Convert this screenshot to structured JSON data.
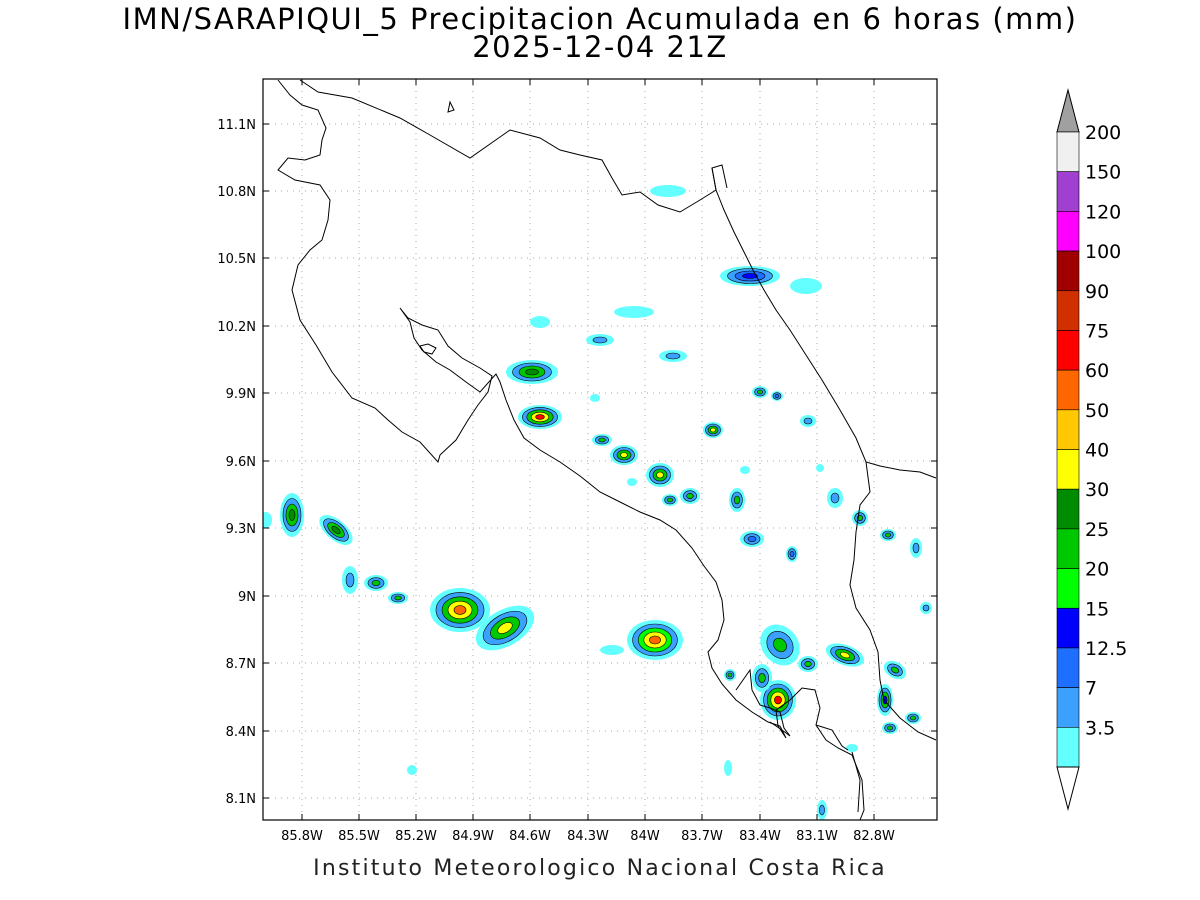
{
  "header": {
    "title": "IMN/SARAPIQUI_5 Precipitacion Acumulada en 6 horas (mm)",
    "subtitle": "2025-12-04 21Z"
  },
  "footer": {
    "text": "Instituto Meteorologico Nacional Costa Rica"
  },
  "map": {
    "lat_labels": [
      "11.1N",
      "10.8N",
      "10.5N",
      "10.2N",
      "9.9N",
      "9.6N",
      "9.3N",
      "9N",
      "8.7N",
      "8.4N",
      "8.1N"
    ],
    "lon_labels": [
      "85.8W",
      "85.5W",
      "85.2W",
      "84.9W",
      "84.6W",
      "84.3W",
      "84W",
      "83.7W",
      "83.4W",
      "83.1W",
      "82.8W"
    ],
    "grid": "dotted"
  },
  "colorbar": {
    "levels": [
      "200",
      "150",
      "120",
      "100",
      "90",
      "75",
      "60",
      "50",
      "40",
      "30",
      "25",
      "20",
      "15",
      "12.5",
      "7",
      "3.5"
    ],
    "colors": [
      "#f0f0f0",
      "#a040d0",
      "#ff00ff",
      "#a00000",
      "#d03000",
      "#ff0000",
      "#ff6600",
      "#ffc800",
      "#ffff00",
      "#008c00",
      "#00c800",
      "#00ff00",
      "#0000ff",
      "#1e6eff",
      "#3ca0ff",
      "#64ffff"
    ],
    "top_arrow_color": "#a0a0a0",
    "bottom_arrow_color": "#ffffff"
  },
  "colors": {
    "c35": "#64ffff",
    "c7": "#3ca0ff",
    "c125": "#1e6eff",
    "c15": "#0000ff",
    "c20": "#00ff00",
    "c25": "#00c800",
    "c30": "#008c00",
    "c40": "#ffff00",
    "c50": "#ffc800",
    "c60": "#ff6600",
    "c75": "#ff0000",
    "c90": "#d03000"
  }
}
